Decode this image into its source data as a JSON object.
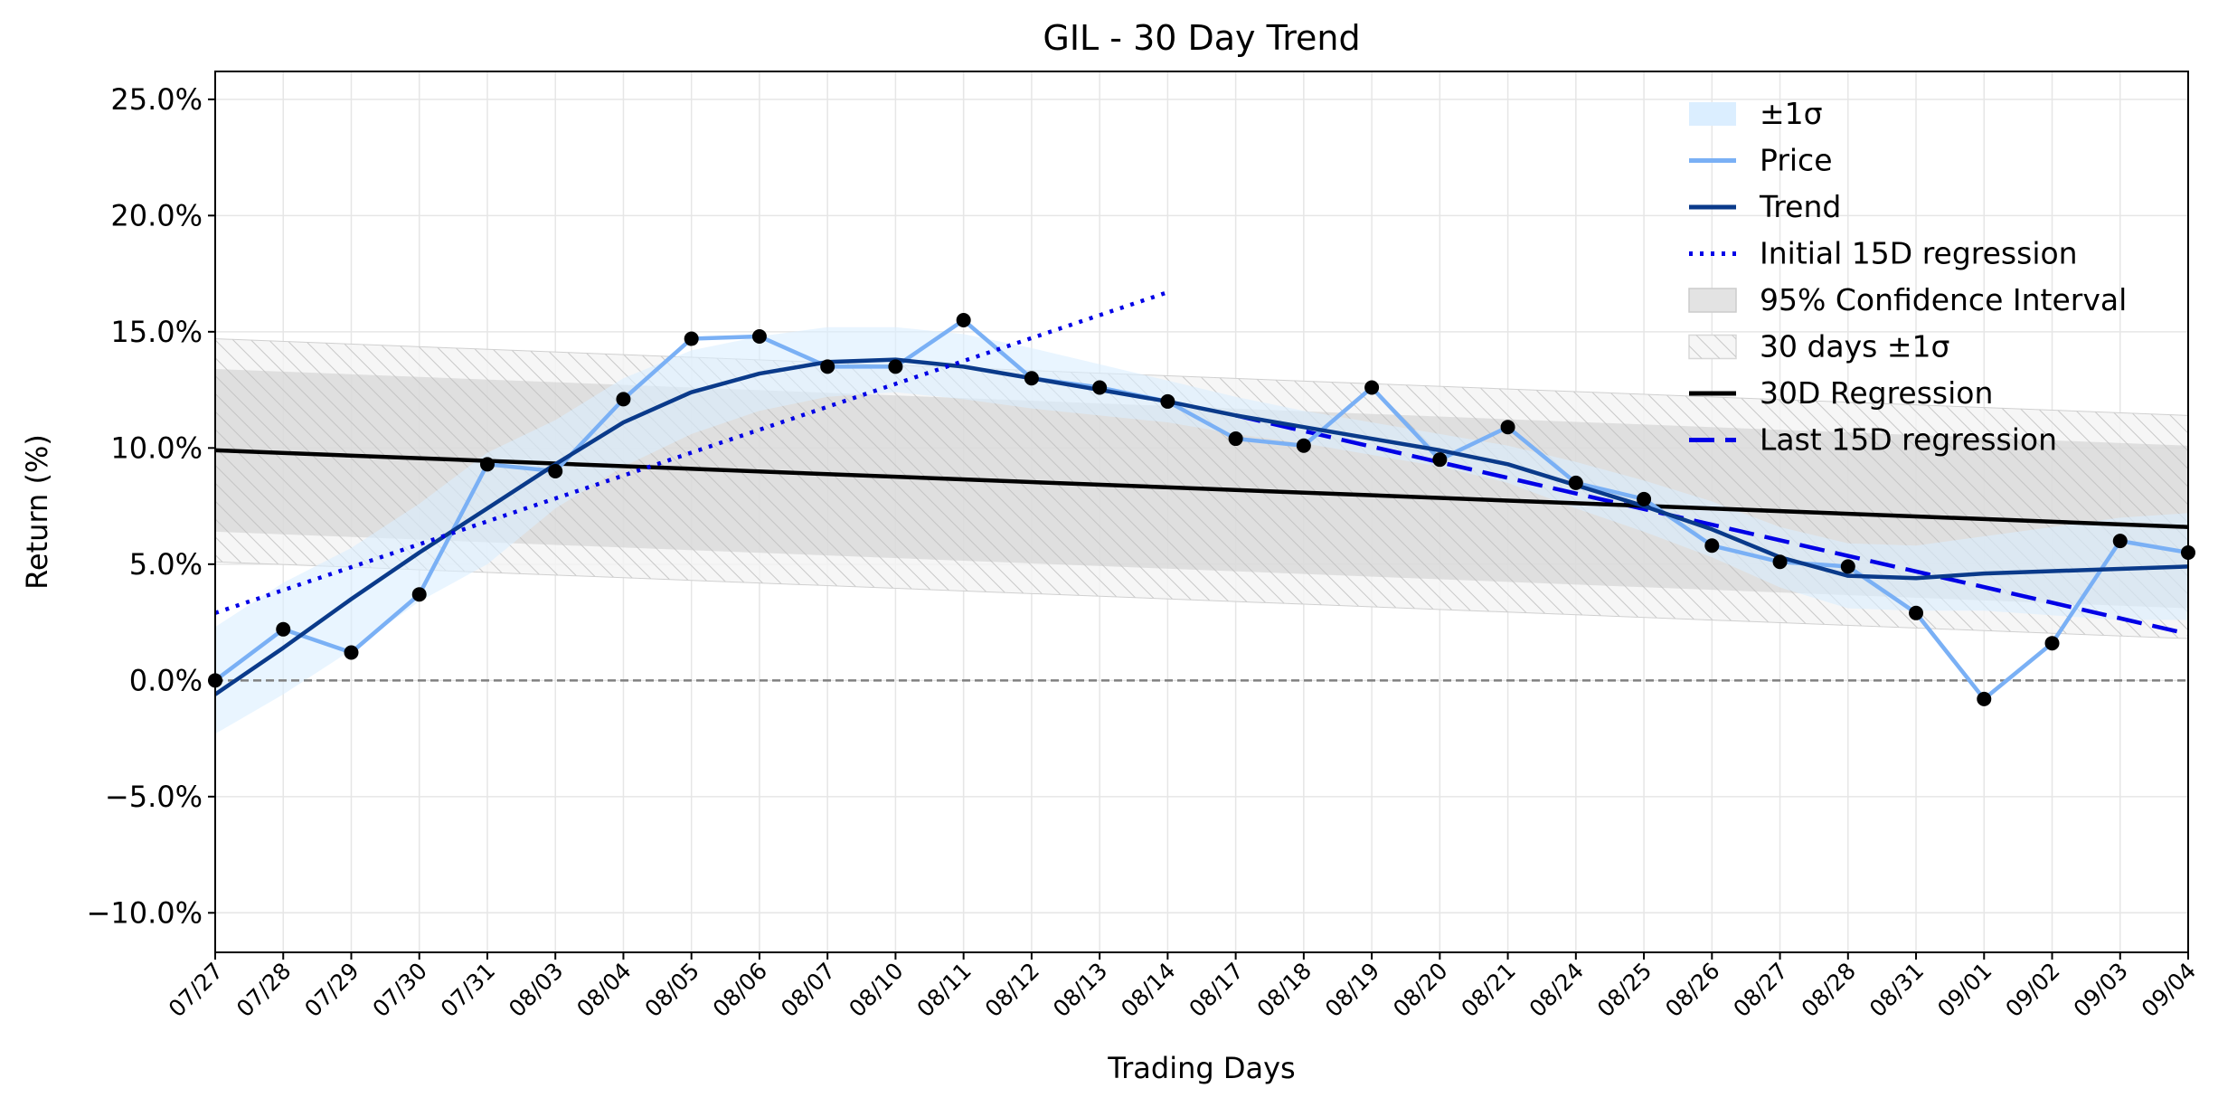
{
  "chart_data": {
    "type": "line",
    "title": "GIL - 30 Day Trend",
    "xlabel": "Trading Days",
    "ylabel": "Return (%)",
    "ylim": [
      -11.7,
      26.2
    ],
    "yticks": [
      -10,
      -5,
      0,
      5,
      10,
      15,
      20,
      25
    ],
    "ytick_labels": [
      "−10.0%",
      "−5.0%",
      "0.0%",
      "5.0%",
      "10.0%",
      "15.0%",
      "20.0%",
      "25.0%"
    ],
    "grid": true,
    "legend_position": "top-right",
    "categories": [
      "07/27",
      "07/28",
      "07/29",
      "07/30",
      "07/31",
      "08/03",
      "08/04",
      "08/05",
      "08/06",
      "08/07",
      "08/10",
      "08/11",
      "08/12",
      "08/13",
      "08/14",
      "08/17",
      "08/18",
      "08/19",
      "08/20",
      "08/21",
      "08/24",
      "08/25",
      "08/26",
      "08/27",
      "08/28",
      "08/31",
      "09/01",
      "09/02",
      "09/03",
      "09/04"
    ],
    "series": [
      {
        "name": "Price",
        "color": "#7ab0f5",
        "values": [
          0.0,
          2.2,
          1.2,
          3.7,
          9.3,
          9.0,
          12.1,
          14.7,
          14.8,
          13.5,
          13.5,
          15.5,
          13.0,
          12.6,
          12.0,
          10.4,
          10.1,
          12.6,
          9.5,
          10.9,
          8.5,
          7.8,
          5.8,
          5.1,
          4.9,
          2.9,
          -0.8,
          1.6,
          6.0,
          5.5
        ]
      },
      {
        "name": "Trend",
        "color": "#0a3a8a",
        "values": [
          -0.6,
          1.4,
          3.5,
          5.5,
          7.4,
          9.3,
          11.1,
          12.4,
          13.2,
          13.7,
          13.8,
          13.5,
          13.0,
          12.5,
          12.0,
          11.4,
          10.9,
          10.4,
          9.9,
          9.3,
          8.4,
          7.5,
          6.5,
          5.3,
          4.5,
          4.4,
          4.6,
          4.7,
          4.8,
          4.9
        ]
      },
      {
        "name": "Initial 15D regression",
        "color": "#0000e6",
        "style": "dotted",
        "x": [
          0,
          14
        ],
        "values": [
          2.9,
          16.7
        ]
      },
      {
        "name": "30D Regression",
        "color": "#000000",
        "style": "solid",
        "x": [
          0,
          29
        ],
        "values": [
          9.9,
          6.6
        ]
      },
      {
        "name": "Last 15D regression",
        "color": "#0000e6",
        "style": "dashed",
        "x": [
          15,
          29
        ],
        "values": [
          11.4,
          2.0
        ]
      }
    ],
    "bands": [
      {
        "name": "±1σ",
        "color": "#dbeeff",
        "upper": [
          2.3,
          4.2,
          5.7,
          7.6,
          9.8,
          11.2,
          13.0,
          14.2,
          14.8,
          15.2,
          15.2,
          14.9,
          14.3,
          13.6,
          12.9,
          12.2,
          11.6,
          11.1,
          10.6,
          10.1,
          9.4,
          8.6,
          7.7,
          6.6,
          5.9,
          5.8,
          6.2,
          6.6,
          7.0,
          7.2
        ],
        "lower": [
          -2.3,
          -0.6,
          1.3,
          3.4,
          5.0,
          7.4,
          9.2,
          10.6,
          11.6,
          12.2,
          12.4,
          12.1,
          11.7,
          11.4,
          11.1,
          10.6,
          10.2,
          9.7,
          9.2,
          8.5,
          7.4,
          6.4,
          5.3,
          4.0,
          3.1,
          3.0,
          3.0,
          2.8,
          2.6,
          2.6
        ]
      },
      {
        "name": "95% Confidence Interval",
        "color": "#bfbfbf",
        "x": [
          0,
          29
        ],
        "upper": [
          13.4,
          10.1
        ],
        "lower": [
          6.4,
          3.1
        ]
      },
      {
        "name": "30 days ±1σ",
        "color": "#d9d9d9",
        "x": [
          0,
          29
        ],
        "upper": [
          14.7,
          11.4
        ],
        "lower": [
          5.1,
          1.8
        ]
      }
    ],
    "reference_line": {
      "y": 0,
      "color": "#808080",
      "style": "dashed"
    }
  }
}
